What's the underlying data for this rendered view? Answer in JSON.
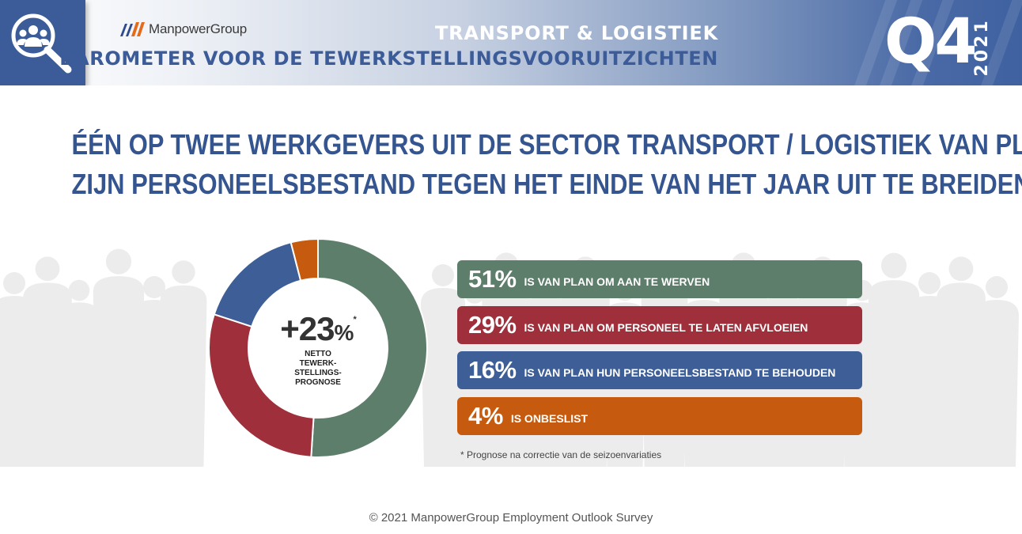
{
  "header": {
    "brand": "ManpowerGroup",
    "sector": "TRANSPORT & LOGISTIEK",
    "subtitle": "BAROMETER VOOR DE TEWERKSTELLINGSVOORUITZICHTEN",
    "quarter": "Q4",
    "year": "2021",
    "icon": "people-search-icon"
  },
  "headline": {
    "line1": "ÉÉN OP TWEE WERKGEVERS UIT DE SECTOR TRANSPORT / LOGISTIEK VAN PLAN",
    "line2": "ZIJN PERSONEELSBESTAND TEGEN HET EINDE VAN HET JAAR UIT TE BREIDEN"
  },
  "summary": {
    "net_value": "+23",
    "net_unit": "%",
    "net_marker": "*",
    "net_label": "NETTO TEWERK-STELLINGS-PROGNOSE"
  },
  "chart_data": {
    "type": "pie",
    "title": "",
    "categories": [
      "IS VAN PLAN OM AAN TE WERVEN",
      "IS VAN PLAN OM PERSONEEL TE LATEN AFVLOEIEN",
      "IS VAN PLAN HUN PERSONEELSBESTAND TE BEHOUDEN",
      "IS ONBESLIST"
    ],
    "values": [
      51,
      29,
      16,
      4
    ],
    "value_labels": [
      "51%",
      "29%",
      "16%",
      "4%"
    ],
    "colors": [
      "#5e7e6c",
      "#9e2f3b",
      "#3d5e97",
      "#c65a0e"
    ]
  },
  "footnote": "* Prognose na correctie van de seizoenvariaties",
  "copyright": "© 2021 ManpowerGroup Employment Outlook Survey"
}
